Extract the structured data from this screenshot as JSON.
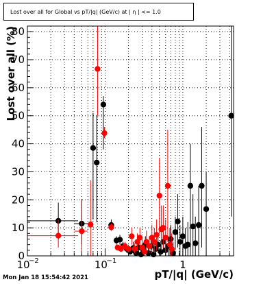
{
  "title": "Lost over all for Global vs pT/|q| (GeV/c) at | η | <= 1.0",
  "timestamp": "Mon Jan 18 15:54:42 2021",
  "colors": {
    "black_series": "#000000",
    "red_series": "#ff0000",
    "grid": "#000000"
  },
  "chart_data": {
    "type": "scatter",
    "title": "Lost over all for Global vs pT/|q| (GeV/c) at | η | <= 1.0",
    "xlabel": "pT/|q| (GeV/c)",
    "ylabel": "Lost over all (%)",
    "xscale": "log",
    "xlim": [
      0.01,
      4.5
    ],
    "ylim": [
      0,
      82
    ],
    "grid": true,
    "x_tick_labels": [
      {
        "value": 0.01,
        "mantissa": "10",
        "exp": "−2"
      },
      {
        "value": 0.1,
        "mantissa": "10",
        "exp": "−1"
      },
      {
        "value": 1,
        "mantissa": "1",
        "exp": ""
      }
    ],
    "y_ticks": [
      0,
      10,
      20,
      30,
      40,
      50,
      60,
      70,
      80
    ],
    "series": [
      {
        "color": "black",
        "points": [
          {
            "x": 0.025,
            "y": 12.5,
            "xerr": [
              0.01,
              0.045
            ],
            "yerr": [
              6,
              19
            ]
          },
          {
            "x": 0.05,
            "y": 11.5,
            "xerr": [
              0.04,
              0.06
            ],
            "yerr": [
              4,
              20
            ]
          },
          {
            "x": 0.07,
            "y": 38.5,
            "xerr": [
              0.065,
              0.075
            ],
            "yerr": [
              13,
              51
            ]
          },
          {
            "x": 0.078,
            "y": 33.3,
            "xerr": [
              0.075,
              0.082
            ],
            "yerr": [
              12,
              50
            ]
          },
          {
            "x": 0.095,
            "y": 54,
            "xerr": [
              0.09,
              0.1
            ],
            "yerr": [
              38,
              57
            ]
          },
          {
            "x": 0.12,
            "y": 11,
            "xerr": [
              0.11,
              0.13
            ],
            "yerr": [
              9,
              13
            ]
          },
          {
            "x": 0.14,
            "y": 5.5,
            "yerr": [
              4,
              7
            ]
          },
          {
            "x": 0.155,
            "y": 5.8,
            "yerr": [
              4,
              7.5
            ]
          },
          {
            "x": 0.17,
            "y": 3.5,
            "yerr": [
              2,
              5
            ]
          },
          {
            "x": 0.19,
            "y": 2.5,
            "yerr": [
              1,
              4
            ]
          },
          {
            "x": 0.21,
            "y": 1.5,
            "yerr": [
              0.5,
              3
            ]
          },
          {
            "x": 0.23,
            "y": 2.8,
            "yerr": [
              1,
              5
            ]
          },
          {
            "x": 0.25,
            "y": 1.0,
            "yerr": [
              0,
              3
            ]
          },
          {
            "x": 0.27,
            "y": 3.0,
            "yerr": [
              1,
              5
            ]
          },
          {
            "x": 0.29,
            "y": 0.5,
            "yerr": [
              0,
              2
            ]
          },
          {
            "x": 0.31,
            "y": 2.0,
            "yerr": [
              0,
              4
            ]
          },
          {
            "x": 0.33,
            "y": 4.0,
            "yerr": [
              1,
              7
            ]
          },
          {
            "x": 0.36,
            "y": 1.0,
            "yerr": [
              0,
              3
            ]
          },
          {
            "x": 0.39,
            "y": 3.5,
            "yerr": [
              1,
              6
            ]
          },
          {
            "x": 0.42,
            "y": 0.5,
            "yerr": [
              0,
              2
            ]
          },
          {
            "x": 0.45,
            "y": 2.5,
            "yerr": [
              0,
              5
            ]
          },
          {
            "x": 0.48,
            "y": 4.0,
            "yerr": [
              1,
              7
            ]
          },
          {
            "x": 0.52,
            "y": 1.5,
            "yerr": [
              0,
              4
            ]
          },
          {
            "x": 0.56,
            "y": 5.0,
            "yerr": [
              1,
              9
            ]
          },
          {
            "x": 0.6,
            "y": 2.0,
            "yerr": [
              0,
              5
            ]
          },
          {
            "x": 0.65,
            "y": 3.5,
            "yerr": [
              0,
              7
            ]
          },
          {
            "x": 0.7,
            "y": 6.0,
            "yerr": [
              1,
              11
            ]
          },
          {
            "x": 0.75,
            "y": 1.0,
            "yerr": [
              0,
              5
            ]
          },
          {
            "x": 0.8,
            "y": 8.5,
            "yerr": [
              2,
              14
            ]
          },
          {
            "x": 0.86,
            "y": 12.3,
            "yerr": [
              3,
              22
            ]
          },
          {
            "x": 0.92,
            "y": 5.0,
            "yerr": [
              0,
              11
            ]
          },
          {
            "x": 1.0,
            "y": 7.0,
            "yerr": [
              0,
              14
            ]
          },
          {
            "x": 1.08,
            "y": 3.5,
            "yerr": [
              0,
              10
            ]
          },
          {
            "x": 1.16,
            "y": 4.0,
            "yerr": [
              0,
              12
            ]
          },
          {
            "x": 1.25,
            "y": 25.0,
            "yerr": [
              0,
              40
            ]
          },
          {
            "x": 1.35,
            "y": 10.5,
            "yerr": [
              0,
              22
            ]
          },
          {
            "x": 1.45,
            "y": 4.5,
            "yerr": [
              0,
              14
            ]
          },
          {
            "x": 1.6,
            "y": 11.0,
            "yerr": [
              0,
              25
            ]
          },
          {
            "x": 1.75,
            "y": 25.0,
            "yerr": [
              3,
              46
            ]
          },
          {
            "x": 2.0,
            "y": 16.7,
            "yerr": [
              0,
              30
            ]
          },
          {
            "x": 4.2,
            "y": 50.0,
            "yerr": [
              14,
              82
            ]
          }
        ]
      },
      {
        "color": "red",
        "points": [
          {
            "x": 0.025,
            "y": 7.2,
            "xerr": [
              0.01,
              0.045
            ],
            "yerr": [
              3,
              13
            ]
          },
          {
            "x": 0.05,
            "y": 8.8,
            "xerr": [
              0.04,
              0.06
            ],
            "yerr": [
              1,
              20
            ]
          },
          {
            "x": 0.065,
            "y": 11.2,
            "xerr": [
              0.06,
              0.07
            ],
            "yerr": [
              0,
              27
            ]
          },
          {
            "x": 0.08,
            "y": 66.7,
            "xerr": [
              0.075,
              0.085
            ],
            "yerr": [
              50,
              82
            ]
          },
          {
            "x": 0.098,
            "y": 43.8,
            "xerr": [
              0.092,
              0.105
            ],
            "yerr": [
              42,
              46
            ]
          },
          {
            "x": 0.12,
            "y": 10.2,
            "xerr": [
              0.11,
              0.13
            ],
            "yerr": [
              9,
              11.5
            ]
          },
          {
            "x": 0.145,
            "y": 3.0,
            "yerr": [
              2,
              4
            ]
          },
          {
            "x": 0.16,
            "y": 2.5,
            "yerr": [
              1.5,
              4
            ]
          },
          {
            "x": 0.18,
            "y": 3.5,
            "yerr": [
              2,
              5
            ]
          },
          {
            "x": 0.2,
            "y": 2.5,
            "yerr": [
              1,
              4
            ]
          },
          {
            "x": 0.22,
            "y": 7.0,
            "yerr": [
              4,
              10
            ]
          },
          {
            "x": 0.24,
            "y": 2.5,
            "yerr": [
              1,
              4.5
            ]
          },
          {
            "x": 0.26,
            "y": 5.0,
            "yerr": [
              2,
              8
            ]
          },
          {
            "x": 0.28,
            "y": 6.5,
            "yerr": [
              3,
              10
            ]
          },
          {
            "x": 0.3,
            "y": 3.0,
            "yerr": [
              1,
              6
            ]
          },
          {
            "x": 0.32,
            "y": 1.5,
            "yerr": [
              0,
              4
            ]
          },
          {
            "x": 0.34,
            "y": 5.0,
            "yerr": [
              2,
              9
            ]
          },
          {
            "x": 0.37,
            "y": 3.5,
            "yerr": [
              1,
              7
            ]
          },
          {
            "x": 0.4,
            "y": 6.5,
            "yerr": [
              2,
              11
            ]
          },
          {
            "x": 0.43,
            "y": 5.0,
            "yerr": [
              1,
              10
            ]
          },
          {
            "x": 0.46,
            "y": 7.5,
            "yerr": [
              2,
              13
            ]
          },
          {
            "x": 0.5,
            "y": 21.5,
            "yerr": [
              8,
              35
            ]
          },
          {
            "x": 0.53,
            "y": 9.5,
            "yerr": [
              2,
              18
            ]
          },
          {
            "x": 0.56,
            "y": 10.0,
            "yerr": [
              3,
              18
            ]
          },
          {
            "x": 0.6,
            "y": 6.5,
            "yerr": [
              1,
              13
            ]
          },
          {
            "x": 0.64,
            "y": 25.0,
            "yerr": [
              5,
              45
            ]
          },
          {
            "x": 0.68,
            "y": 4.0,
            "yerr": [
              0,
              10
            ]
          },
          {
            "x": 0.72,
            "y": 2.5,
            "yerr": [
              0,
              8
            ]
          }
        ]
      }
    ]
  }
}
